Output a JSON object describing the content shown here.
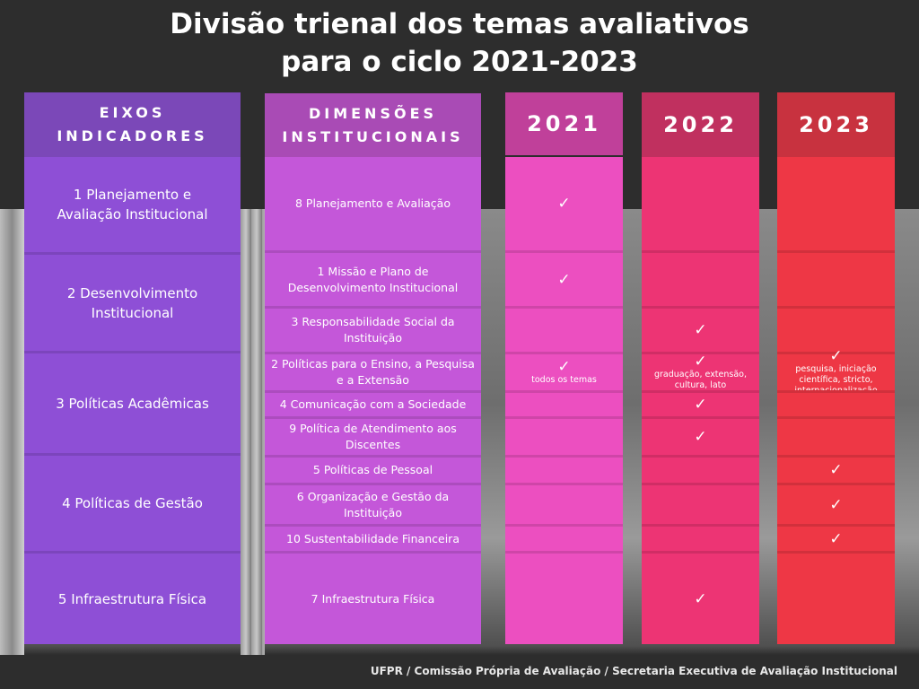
{
  "title_line1": "Divisão trienal dos temas avaliativos",
  "title_line2": "para o ciclo 2021-2023",
  "columns": {
    "eixos": "EIXOS\nINDICADORES",
    "dimensoes": "DIMENSÕES\nINSTITUCIONAIS",
    "y2021": "2021",
    "y2022": "2022",
    "y2023": "2023"
  },
  "colors": {
    "eixos_header": "#7b48b8",
    "eixos": "#8e4fd6",
    "dim_header": "#a94bb5",
    "dim": "#c457d9",
    "y2021_header": "#c0409a",
    "y2021": "#ec4fc0",
    "y2022_header": "#c0305f",
    "y2022": "#ed3474",
    "y2023_header": "#c8323f",
    "y2023": "#ee3745"
  },
  "eixos": [
    "1 Planejamento e Avaliação Institucional",
    "2 Desenvolvimento Institucional",
    "3 Políticas Acadêmicas",
    "4 Políticas de Gestão",
    "5 Infraestrutura Física"
  ],
  "dimensoes": [
    {
      "label": "8 Planejamento e Avaliação",
      "y2021": "✓",
      "y2022": "",
      "y2023": ""
    },
    {
      "label": "1 Missão e Plano de Desenvolvimento Institucional",
      "y2021": "✓",
      "y2022": "",
      "y2023": ""
    },
    {
      "label": "3 Responsabilidade Social da Instituição",
      "y2021": "",
      "y2022": "✓",
      "y2023": ""
    },
    {
      "label": "2 Políticas para o Ensino, a Pesquisa e a Extensão",
      "y2021": "✓",
      "y2022": "✓",
      "y2023": "✓",
      "n2021": "todos os temas",
      "n2022": "graduação, extensão, cultura, lato",
      "n2023": "pesquisa, iniciação científica, stricto, internacionalização"
    },
    {
      "label": "4 Comunicação com a Sociedade",
      "y2021": "",
      "y2022": "✓",
      "y2023": ""
    },
    {
      "label": "9 Política de Atendimento aos Discentes",
      "y2021": "",
      "y2022": "✓",
      "y2023": ""
    },
    {
      "label": "5 Políticas de Pessoal",
      "y2021": "",
      "y2022": "",
      "y2023": "✓"
    },
    {
      "label": "6 Organização e Gestão da Instituição",
      "y2021": "",
      "y2022": "",
      "y2023": "✓"
    },
    {
      "label": "10 Sustentabilidade Financeira",
      "y2021": "",
      "y2022": "",
      "y2023": "✓"
    },
    {
      "label": "7 Infraestrutura Física",
      "y2021": "",
      "y2022": "✓",
      "y2023": ""
    }
  ],
  "footer": "UFPR / Comissão Própria de Avaliação / Secretaria Executiva de Avaliação Institucional"
}
